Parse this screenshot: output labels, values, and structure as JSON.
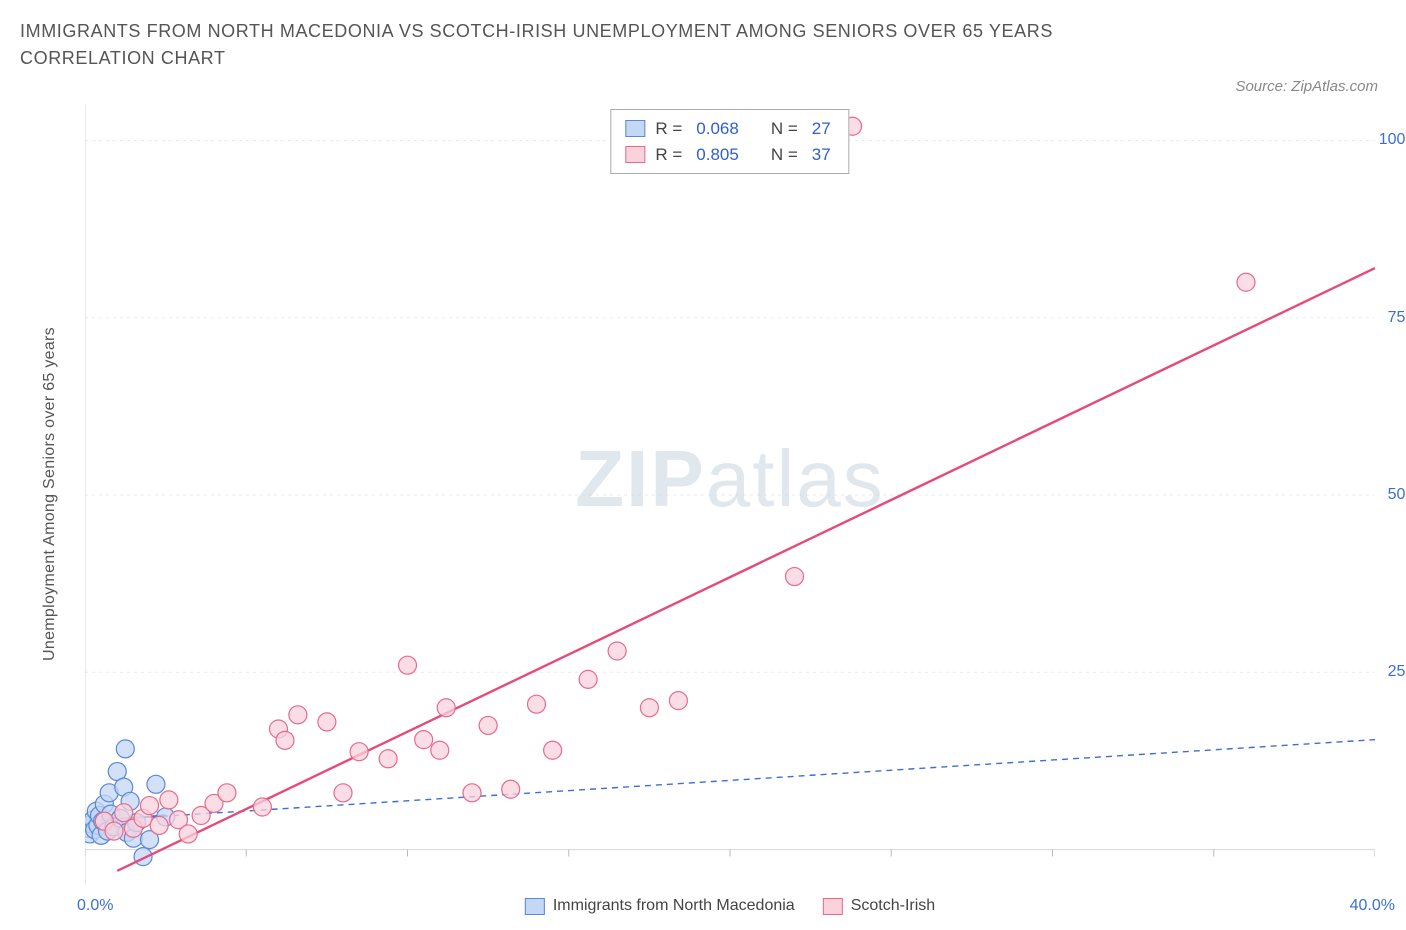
{
  "title": "IMMIGRANTS FROM NORTH MACEDONIA VS SCOTCH-IRISH UNEMPLOYMENT AMONG SENIORS OVER 65 YEARS CORRELATION CHART",
  "source_label": "Source: ZipAtlas.com",
  "yaxis_label": "Unemployment Among Seniors over 65 years",
  "watermark_a": "ZIP",
  "watermark_b": "atlas",
  "chart": {
    "type": "scatter",
    "background_color": "#ffffff",
    "grid_color": "#e9e9e9",
    "grid_dash": "3,4",
    "axis_color": "#dcdcdc",
    "tick_color": "#bbbbbb",
    "xlim": [
      0,
      40
    ],
    "ylim": [
      -5,
      105
    ],
    "x_ticks": [
      0,
      5,
      10,
      15,
      20,
      25,
      30,
      35,
      40
    ],
    "x_tick_labels_shown": {
      "min": "0.0%",
      "max": "40.0%"
    },
    "y_grid": [
      0,
      25,
      50,
      75,
      100
    ],
    "y_tick_labels": [
      "25.0%",
      "50.0%",
      "75.0%",
      "100.0%"
    ],
    "marker_radius": 9,
    "marker_stroke_width": 1.2,
    "series": [
      {
        "key": "macedonia",
        "label": "Immigrants from North Macedonia",
        "fill": "#c4d7f5",
        "stroke": "#5a87d6",
        "line_color": "#3b6fd6",
        "line_dash": "6,5",
        "line_width": 1.4,
        "R": "0.068",
        "N": "27",
        "trend": {
          "x1": 0,
          "y1": 4.0,
          "x2": 40,
          "y2": 15.5
        },
        "solid_segment": {
          "x1": 0,
          "y1": 4.0,
          "x2": 2.5,
          "y2": 4.8
        },
        "points": [
          [
            0.1,
            3.0
          ],
          [
            0.15,
            2.2
          ],
          [
            0.2,
            3.6
          ],
          [
            0.25,
            4.2
          ],
          [
            0.3,
            2.8
          ],
          [
            0.35,
            5.4
          ],
          [
            0.4,
            3.4
          ],
          [
            0.45,
            4.8
          ],
          [
            0.5,
            2.0
          ],
          [
            0.55,
            4.0
          ],
          [
            0.6,
            6.4
          ],
          [
            0.7,
            2.6
          ],
          [
            0.75,
            8.0
          ],
          [
            0.8,
            5.0
          ],
          [
            0.9,
            3.2
          ],
          [
            1.0,
            11.0
          ],
          [
            1.1,
            4.4
          ],
          [
            1.2,
            8.8
          ],
          [
            1.25,
            14.2
          ],
          [
            1.3,
            2.4
          ],
          [
            1.4,
            6.8
          ],
          [
            1.5,
            1.6
          ],
          [
            1.6,
            3.8
          ],
          [
            1.8,
            -1.0
          ],
          [
            2.0,
            1.4
          ],
          [
            2.2,
            9.2
          ],
          [
            2.5,
            4.6
          ]
        ]
      },
      {
        "key": "scotch",
        "label": "Scotch-Irish",
        "fill": "#f9d2dc",
        "stroke": "#e86a8b",
        "line_color": "#e84a78",
        "line_dash": "",
        "line_width": 2.4,
        "R": "0.805",
        "N": "37",
        "trend": {
          "x1": 1.0,
          "y1": -3.0,
          "x2": 40,
          "y2": 82.0
        },
        "points": [
          [
            0.6,
            4.0
          ],
          [
            0.9,
            2.6
          ],
          [
            1.2,
            5.2
          ],
          [
            1.5,
            3.0
          ],
          [
            1.8,
            4.4
          ],
          [
            2.0,
            6.2
          ],
          [
            2.3,
            3.4
          ],
          [
            2.6,
            7.0
          ],
          [
            2.9,
            4.2
          ],
          [
            3.2,
            2.2
          ],
          [
            3.6,
            4.8
          ],
          [
            4.0,
            6.5
          ],
          [
            4.4,
            8.0
          ],
          [
            5.5,
            6.0
          ],
          [
            6.0,
            17.0
          ],
          [
            6.2,
            15.4
          ],
          [
            6.6,
            19.0
          ],
          [
            7.5,
            18.0
          ],
          [
            8.0,
            8.0
          ],
          [
            8.5,
            13.8
          ],
          [
            9.4,
            12.8
          ],
          [
            10.0,
            26.0
          ],
          [
            10.5,
            15.5
          ],
          [
            11.0,
            14.0
          ],
          [
            11.2,
            20.0
          ],
          [
            12.0,
            8.0
          ],
          [
            12.5,
            17.5
          ],
          [
            13.2,
            8.5
          ],
          [
            14.0,
            20.5
          ],
          [
            14.5,
            14.0
          ],
          [
            15.6,
            24.0
          ],
          [
            16.5,
            28.0
          ],
          [
            17.5,
            20.0
          ],
          [
            18.4,
            21.0
          ],
          [
            22.0,
            38.5
          ],
          [
            23.8,
            102.0
          ],
          [
            36.0,
            80.0
          ]
        ]
      }
    ]
  },
  "stats_box": {
    "r_label": "R =",
    "n_label": "N ="
  },
  "colors": {
    "title_text": "#555555",
    "tick_label": "#3b6fd6",
    "source_text": "#888888"
  }
}
